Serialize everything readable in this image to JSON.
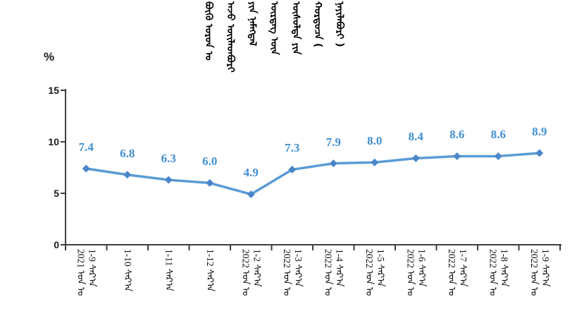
{
  "chart_data": {
    "type": "line",
    "title": "ᠪᠦᠬᠦ ᠣᠷᠣᠨ ᠤ ᠠᠵᠤ ᠦᠢᠯᠡᠳᠪᠦᠷᠢ ᠶᠢᠨ ᠨᠡᠮᠡᠭᠳᠡᠯ ᠥᠷᠲᠡᠭ ᠦᠨ ᠥᠰᠦᠯᠲᠡ ᠶᠢᠨ ᠬᠤᠷᠳᠤᠴᠠ ( ᠨᠡᠶᠢᠯᠡᠪᠦᠷᠢ )",
    "unit_label": "%",
    "categories": [
      "2021 1-9",
      "1-10",
      "1-11",
      "1-12",
      "2022 1-2",
      "2022 1-3",
      "2022 1-4",
      "2022 1-5",
      "2022 1-6",
      "2022 1-7",
      "2022 1-8",
      "2022 1-9"
    ],
    "x_tick_labels": [
      {
        "line1": "1-9 ᠰᠠᠷ᠎ᠠ",
        "line2": "2021 ᠣᠨ ᠤ"
      },
      {
        "line1": "1-10 ᠰᠠᠷ᠎ᠠ",
        "line2": ""
      },
      {
        "line1": "1-11 ᠰᠠᠷ᠎ᠠ",
        "line2": ""
      },
      {
        "line1": "1-12 ᠰᠠᠷ᠎ᠠ",
        "line2": ""
      },
      {
        "line1": "1-2 ᠰᠠᠷ᠎ᠠ",
        "line2": "2022 ᠣᠨ ᠤ"
      },
      {
        "line1": "1-3 ᠰᠠᠷ᠎ᠠ",
        "line2": "2022 ᠣᠨ ᠤ"
      },
      {
        "line1": "1-4 ᠰᠠᠷ᠎ᠠ",
        "line2": "2022 ᠣᠨ ᠤ"
      },
      {
        "line1": "1-5 ᠰᠠᠷ᠎ᠠ",
        "line2": "2022 ᠣᠨ ᠤ"
      },
      {
        "line1": "1-6 ᠰᠠᠷ᠎ᠠ",
        "line2": "2022 ᠣᠨ ᠤ"
      },
      {
        "line1": "1-7 ᠰᠠᠷ᠎ᠠ",
        "line2": "2022 ᠣᠨ ᠤ"
      },
      {
        "line1": "1-8 ᠰᠠᠷ᠎ᠠ",
        "line2": "2022 ᠣᠨ ᠤ"
      },
      {
        "line1": "1-9 ᠰᠠᠷ᠎ᠠ",
        "line2": "2022 ᠣᠨ ᠤ"
      }
    ],
    "values": [
      7.4,
      6.8,
      6.3,
      6.0,
      4.9,
      7.3,
      7.9,
      8.0,
      8.4,
      8.6,
      8.6,
      8.9
    ],
    "ylim": [
      0,
      15
    ],
    "yticks": [
      0,
      5,
      10,
      15
    ],
    "grid": false,
    "legend": false,
    "marker": "diamond",
    "colors": {
      "line": "#5b9bd5",
      "marker": "#4a86c8",
      "data_label": "#4190d2",
      "axis": "#3f3f3f",
      "tick_text": "#1a1a1a",
      "title_text": "#000000"
    }
  }
}
